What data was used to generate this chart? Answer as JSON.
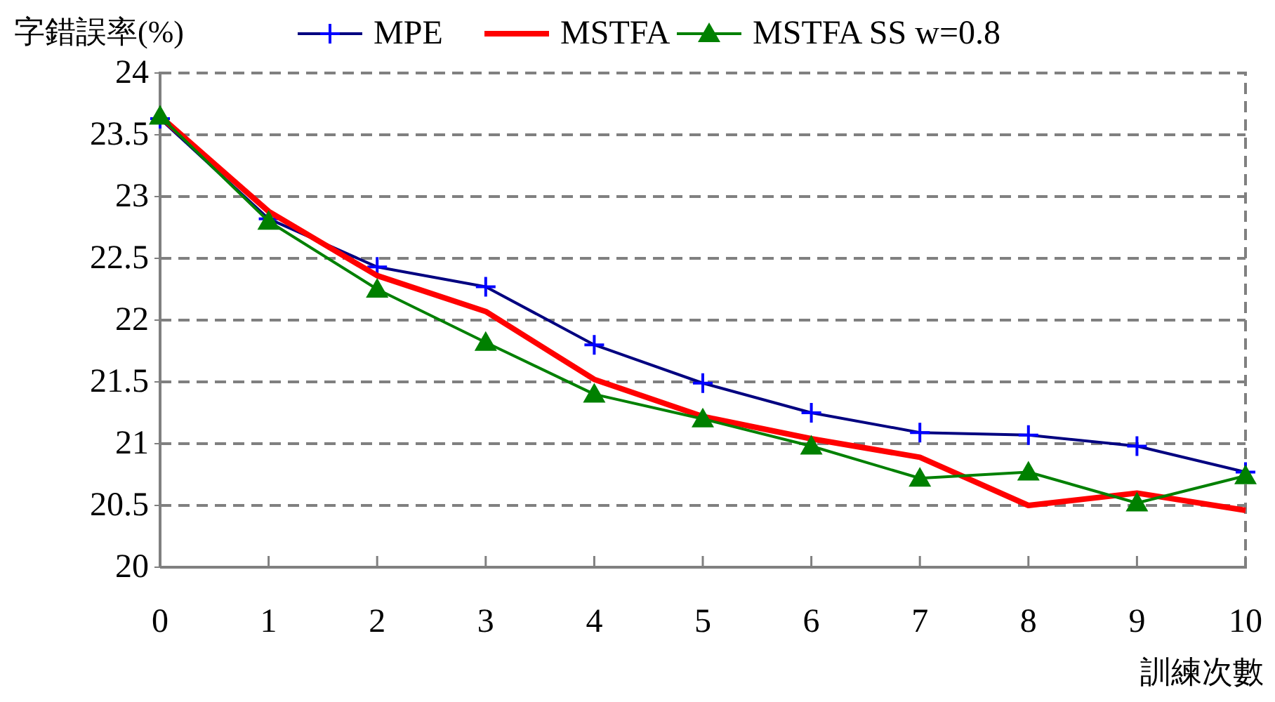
{
  "chart_data": {
    "type": "line",
    "ylabel": "字錯誤率(%)",
    "xlabel": "訓練次數",
    "x": [
      0,
      1,
      2,
      3,
      4,
      5,
      6,
      7,
      8,
      9,
      10
    ],
    "xlim": [
      0,
      10
    ],
    "xticks": [
      0,
      1,
      2,
      3,
      4,
      5,
      6,
      7,
      8,
      9,
      10
    ],
    "ylim": [
      20,
      24
    ],
    "yticks": [
      20,
      20.5,
      21,
      21.5,
      22,
      22.5,
      23,
      23.5,
      24
    ],
    "grid": "y",
    "legend": "top",
    "series": [
      {
        "name": "MPE",
        "color": "#000080",
        "marker": "cross",
        "values": [
          23.63,
          22.82,
          22.43,
          22.27,
          21.8,
          21.49,
          21.25,
          21.09,
          21.07,
          20.98,
          20.77
        ]
      },
      {
        "name": "MSTFA",
        "color": "#ff0000",
        "marker": "none",
        "values": [
          23.65,
          22.88,
          22.36,
          22.07,
          21.52,
          21.22,
          21.04,
          20.89,
          20.5,
          20.6,
          20.46
        ]
      },
      {
        "name": "MSTFA SS w=0.8",
        "color": "#008000",
        "marker": "triangle",
        "values": [
          23.65,
          22.8,
          22.25,
          21.82,
          21.4,
          21.2,
          20.98,
          20.72,
          20.77,
          20.52,
          20.74
        ]
      }
    ]
  }
}
